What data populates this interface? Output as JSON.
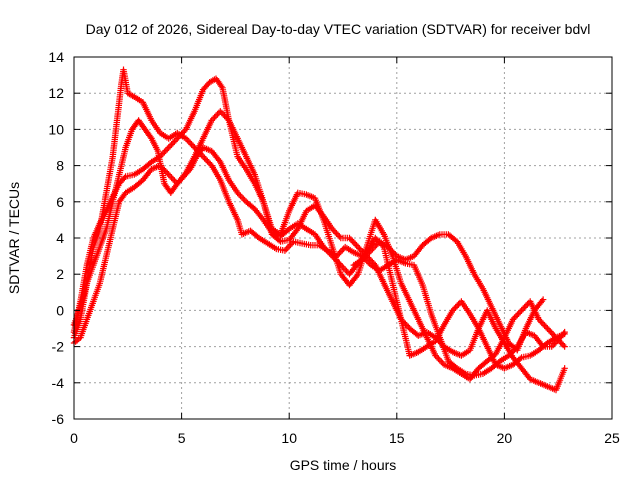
{
  "chart_data": {
    "type": "scatter",
    "title": "Day 012 of 2026, Sidereal Day-to-day VTEC variation (SDTVAR) for receiver bdvl",
    "xlabel": "GPS time / hours",
    "ylabel": "SDTVAR / TECUs",
    "xlim": [
      0,
      25
    ],
    "ylim": [
      -6,
      14
    ],
    "xticks": [
      0,
      5,
      10,
      15,
      20,
      25
    ],
    "yticks": [
      -6,
      -4,
      -2,
      0,
      2,
      4,
      6,
      8,
      10,
      12,
      14
    ],
    "xtick_labels": [
      "0",
      "5",
      "10",
      "15",
      "20",
      "25"
    ],
    "ytick_labels": [
      "-6",
      "-4",
      "-2",
      "0",
      "2",
      "4",
      "6",
      "8",
      "10",
      "12",
      "14"
    ],
    "grid": true,
    "marker": "+",
    "color": "#ff0000",
    "series": [
      {
        "name": "track-1",
        "points": [
          [
            0,
            -1.5
          ],
          [
            0.3,
            -0.5
          ],
          [
            0.6,
            1.5
          ],
          [
            0.9,
            3.5
          ],
          [
            1.2,
            4.5
          ],
          [
            1.5,
            6.5
          ],
          [
            1.8,
            8.5
          ],
          [
            2.0,
            10.5
          ],
          [
            2.2,
            12.5
          ],
          [
            2.3,
            13.3
          ],
          [
            2.5,
            12
          ],
          [
            2.8,
            11.8
          ],
          [
            3.2,
            11.5
          ],
          [
            3.6,
            10.5
          ],
          [
            4.0,
            9.8
          ],
          [
            4.4,
            9.5
          ],
          [
            4.8,
            9.8
          ],
          [
            5.2,
            9.5
          ],
          [
            5.6,
            9
          ],
          [
            6.0,
            8.5
          ],
          [
            6.4,
            8
          ],
          [
            6.8,
            7.2
          ],
          [
            7.2,
            6
          ],
          [
            7.6,
            5
          ],
          [
            7.8,
            4.2
          ],
          [
            8.2,
            4.4
          ],
          [
            8.6,
            4
          ],
          [
            9.0,
            3.7
          ],
          [
            9.4,
            3.4
          ],
          [
            9.8,
            3.3
          ],
          [
            10.2,
            3.8
          ],
          [
            10.6,
            3.7
          ],
          [
            11.0,
            3.6
          ],
          [
            11.4,
            3.6
          ],
          [
            11.8,
            3.3
          ],
          [
            12.2,
            3
          ],
          [
            12.6,
            3.5
          ],
          [
            13.0,
            3.2
          ],
          [
            13.4,
            3
          ],
          [
            13.8,
            2.5
          ],
          [
            14.2,
            2.2
          ],
          [
            14.6,
            2.5
          ],
          [
            15.0,
            2.8
          ],
          [
            15.4,
            2.6
          ],
          [
            15.8,
            2.5
          ],
          [
            16.2,
            1.4
          ],
          [
            16.6,
            -0.2
          ],
          [
            17.0,
            -1.5
          ],
          [
            17.4,
            -2.8
          ],
          [
            17.8,
            -3.2
          ],
          [
            18.2,
            -3.5
          ],
          [
            18.6,
            -3.6
          ],
          [
            19.0,
            -3.5
          ],
          [
            19.4,
            -3.2
          ],
          [
            19.8,
            -2.8
          ],
          [
            20.2,
            -2.5
          ],
          [
            20.6,
            -2
          ],
          [
            21.0,
            -1.2
          ],
          [
            21.4,
            -1.4
          ],
          [
            21.8,
            -2
          ],
          [
            22.2,
            -2
          ],
          [
            22.6,
            -1.5
          ],
          [
            22.8,
            -1.2
          ]
        ]
      },
      {
        "name": "track-2",
        "points": [
          [
            0,
            -1.2
          ],
          [
            0.3,
            0.5
          ],
          [
            0.6,
            2.5
          ],
          [
            0.9,
            4
          ],
          [
            1.2,
            4.8
          ],
          [
            1.5,
            5.5
          ],
          [
            1.8,
            6.3
          ],
          [
            2.1,
            7
          ],
          [
            2.4,
            7.4
          ],
          [
            2.8,
            7.5
          ],
          [
            3.2,
            7.8
          ],
          [
            3.6,
            8.2
          ],
          [
            4.0,
            8.5
          ],
          [
            4.4,
            9
          ],
          [
            4.8,
            9.5
          ],
          [
            5.2,
            10
          ],
          [
            5.6,
            11
          ],
          [
            6.0,
            12.2
          ],
          [
            6.3,
            12.6
          ],
          [
            6.6,
            12.8
          ],
          [
            6.9,
            12.3
          ],
          [
            7.2,
            10.5
          ],
          [
            7.6,
            8.5
          ],
          [
            8.0,
            7.8
          ],
          [
            8.4,
            7
          ],
          [
            8.8,
            6
          ],
          [
            9.2,
            4.5
          ],
          [
            9.6,
            4.2
          ],
          [
            10.0,
            5.5
          ],
          [
            10.4,
            6.5
          ],
          [
            10.8,
            6.4
          ],
          [
            11.2,
            6.2
          ],
          [
            11.6,
            5
          ],
          [
            12.0,
            3.5
          ],
          [
            12.4,
            2
          ],
          [
            12.8,
            1.4
          ],
          [
            13.2,
            2
          ],
          [
            13.6,
            3.5
          ],
          [
            14.0,
            5
          ],
          [
            14.4,
            4.2
          ],
          [
            14.8,
            3
          ],
          [
            15.2,
            1.5
          ],
          [
            15.6,
            0.5
          ],
          [
            16.0,
            -0.5
          ],
          [
            16.4,
            -1.5
          ],
          [
            16.8,
            -2.5
          ],
          [
            17.2,
            -3
          ],
          [
            17.6,
            -3.2
          ],
          [
            18.0,
            -3.5
          ],
          [
            18.4,
            -3.8
          ],
          [
            18.8,
            -3.2
          ],
          [
            19.2,
            -2.8
          ],
          [
            19.6,
            -2.4
          ],
          [
            20.0,
            -1.5
          ],
          [
            20.4,
            -0.5
          ],
          [
            20.8,
            0
          ],
          [
            21.2,
            0.5
          ],
          [
            21.6,
            -0.5
          ],
          [
            22.0,
            -1
          ],
          [
            22.4,
            -1.5
          ],
          [
            22.8,
            -2
          ]
        ]
      },
      {
        "name": "track-3",
        "points": [
          [
            0,
            -1.8
          ],
          [
            0.3,
            -1.5
          ],
          [
            0.6,
            -0.5
          ],
          [
            0.9,
            0.5
          ],
          [
            1.2,
            1.5
          ],
          [
            1.5,
            3
          ],
          [
            1.8,
            4.5
          ],
          [
            2.1,
            6
          ],
          [
            2.4,
            6.5
          ],
          [
            2.8,
            6.8
          ],
          [
            3.2,
            7.2
          ],
          [
            3.6,
            7.8
          ],
          [
            4.0,
            8
          ],
          [
            4.4,
            7.5
          ],
          [
            4.8,
            7
          ],
          [
            5.2,
            7.6
          ],
          [
            5.6,
            8.5
          ],
          [
            6.0,
            9.5
          ],
          [
            6.4,
            10.5
          ],
          [
            6.8,
            11
          ],
          [
            7.2,
            10.5
          ],
          [
            7.6,
            9.5
          ],
          [
            8.0,
            8.5
          ],
          [
            8.4,
            7.5
          ],
          [
            8.8,
            6
          ],
          [
            9.2,
            4.2
          ],
          [
            9.6,
            3.8
          ],
          [
            10.0,
            3.9
          ],
          [
            10.4,
            4.5
          ],
          [
            10.8,
            5.5
          ],
          [
            11.2,
            5.8
          ],
          [
            11.6,
            5.2
          ],
          [
            12.0,
            4.5
          ],
          [
            12.4,
            4
          ],
          [
            12.8,
            4
          ],
          [
            13.2,
            3.5
          ],
          [
            13.6,
            3
          ],
          [
            14.0,
            2.5
          ],
          [
            14.4,
            1.5
          ],
          [
            14.8,
            0.5
          ],
          [
            15.2,
            -0.5
          ],
          [
            15.6,
            -1
          ],
          [
            16.0,
            -1.4
          ],
          [
            16.4,
            -1.2
          ],
          [
            16.8,
            -1.5
          ],
          [
            17.2,
            -2
          ],
          [
            17.6,
            -2.3
          ],
          [
            18.0,
            -2.5
          ],
          [
            18.4,
            -2.2
          ],
          [
            18.8,
            -1
          ],
          [
            19.2,
            0
          ],
          [
            19.6,
            -1
          ],
          [
            20.0,
            -1.8
          ],
          [
            20.4,
            -2.6
          ],
          [
            20.8,
            -3.2
          ],
          [
            21.2,
            -3.8
          ],
          [
            21.6,
            -4
          ],
          [
            22.0,
            -4.2
          ],
          [
            22.4,
            -4.4
          ],
          [
            22.8,
            -3.2
          ]
        ]
      },
      {
        "name": "track-4",
        "points": [
          [
            0,
            -0.8
          ],
          [
            0.3,
            0.2
          ],
          [
            0.6,
            1.5
          ],
          [
            0.9,
            2.5
          ],
          [
            1.2,
            3.5
          ],
          [
            1.5,
            4.5
          ],
          [
            1.8,
            6
          ],
          [
            2.1,
            7.5
          ],
          [
            2.4,
            9
          ],
          [
            2.7,
            10
          ],
          [
            3.0,
            10.5
          ],
          [
            3.3,
            10
          ],
          [
            3.6,
            9.5
          ],
          [
            3.9,
            8.8
          ],
          [
            4.2,
            7
          ],
          [
            4.5,
            6.5
          ],
          [
            4.8,
            7
          ],
          [
            5.1,
            7.4
          ],
          [
            5.4,
            7.8
          ],
          [
            5.7,
            8.5
          ],
          [
            6.0,
            9
          ],
          [
            6.4,
            8.8
          ],
          [
            6.8,
            8.2
          ],
          [
            7.2,
            7.2
          ],
          [
            7.6,
            6.5
          ],
          [
            8.0,
            6
          ],
          [
            8.4,
            5.6
          ],
          [
            8.8,
            5
          ],
          [
            9.2,
            4.3
          ],
          [
            9.6,
            4.1
          ],
          [
            10.0,
            4.5
          ],
          [
            10.4,
            4.8
          ],
          [
            10.8,
            4.5
          ],
          [
            11.2,
            4.2
          ],
          [
            11.6,
            3.5
          ],
          [
            12.0,
            3
          ],
          [
            12.4,
            2.5
          ],
          [
            12.8,
            2
          ],
          [
            13.2,
            2.6
          ],
          [
            13.6,
            3.2
          ],
          [
            14.0,
            4
          ],
          [
            14.4,
            3.5
          ],
          [
            14.8,
            1.5
          ],
          [
            15.2,
            -0.5
          ],
          [
            15.6,
            -2.5
          ],
          [
            16.0,
            -2.3
          ],
          [
            16.4,
            -2
          ],
          [
            16.8,
            -1.7
          ],
          [
            17.2,
            -0.8
          ],
          [
            17.6,
            0
          ],
          [
            18.0,
            0.5
          ],
          [
            18.4,
            -0.2
          ],
          [
            18.8,
            -1
          ],
          [
            19.2,
            -2
          ],
          [
            19.6,
            -3
          ],
          [
            20.0,
            -3.2
          ],
          [
            20.4,
            -3
          ],
          [
            20.8,
            -2.6
          ],
          [
            21.2,
            -2.5
          ],
          [
            21.6,
            -2.2
          ],
          [
            22.0,
            -1.8
          ],
          [
            22.4,
            -1.5
          ],
          [
            22.8,
            -1.3
          ]
        ]
      },
      {
        "name": "track-5",
        "points": [
          [
            13.0,
            2.5
          ],
          [
            13.4,
            2.8
          ],
          [
            13.8,
            3.3
          ],
          [
            14.2,
            3.8
          ],
          [
            14.6,
            3.5
          ],
          [
            15.0,
            3
          ],
          [
            15.4,
            2.8
          ],
          [
            15.8,
            3
          ],
          [
            16.2,
            3.6
          ],
          [
            16.6,
            4
          ],
          [
            17.0,
            4.2
          ],
          [
            17.4,
            4.2
          ],
          [
            17.8,
            3.8
          ],
          [
            18.2,
            3
          ],
          [
            18.6,
            2
          ],
          [
            19.0,
            1.2
          ],
          [
            19.4,
            0.2
          ],
          [
            19.8,
            -0.8
          ],
          [
            20.2,
            -1.8
          ],
          [
            20.6,
            -2.2
          ],
          [
            21.0,
            -1
          ],
          [
            21.4,
            0
          ],
          [
            21.8,
            0.6
          ]
        ]
      }
    ]
  }
}
